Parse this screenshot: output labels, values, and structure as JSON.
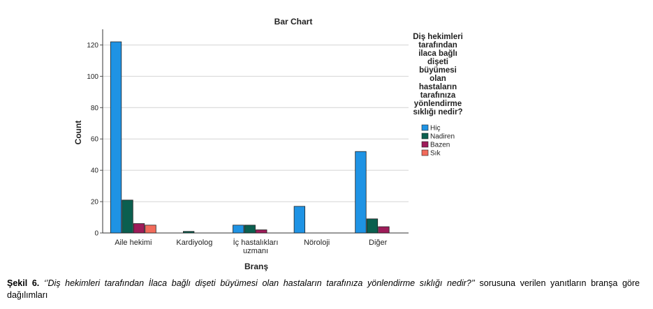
{
  "chart_data": {
    "type": "bar",
    "title": "Bar Chart",
    "xlabel": "Branş",
    "ylabel": "Count",
    "ylim": [
      0,
      130
    ],
    "yticks": [
      0,
      20,
      40,
      60,
      80,
      100,
      120
    ],
    "grid": true,
    "legend_position": "right",
    "categories": [
      [
        "Aile hekimi"
      ],
      [
        "Kardiyolog"
      ],
      [
        "İç hastalıkları",
        "uzmanı"
      ],
      [
        "Nöroloji"
      ],
      [
        "Diğer"
      ]
    ],
    "legend_title": [
      "Diş hekimleri",
      "tarafından",
      "ilaca bağlı",
      "dişeti",
      "büyümesi",
      "olan",
      "hastaların",
      "tarafınıza",
      "yönlendirme",
      "sıklığı nedir?"
    ],
    "series": [
      {
        "name": "Hiç",
        "color": "#1f93e4",
        "values": [
          122,
          0,
          5,
          17,
          52
        ]
      },
      {
        "name": "Nadiren",
        "color": "#0b5f4f",
        "values": [
          21,
          1,
          5,
          0,
          9
        ]
      },
      {
        "name": "Bazen",
        "color": "#9e1c59",
        "values": [
          6,
          0,
          2,
          0,
          4
        ]
      },
      {
        "name": "Sık",
        "color": "#f26b5b",
        "values": [
          5,
          0,
          0,
          0,
          0
        ]
      }
    ]
  },
  "caption": {
    "label": "Şekil 6.",
    "quote": "‘’Diş hekimleri tarafından İlaca bağlı dişeti büyümesi olan hastaların tarafınıza yönlendirme sıklığı nedir?’’",
    "text": "sorusuna verilen yanıtların branşa göre dağılımları"
  }
}
